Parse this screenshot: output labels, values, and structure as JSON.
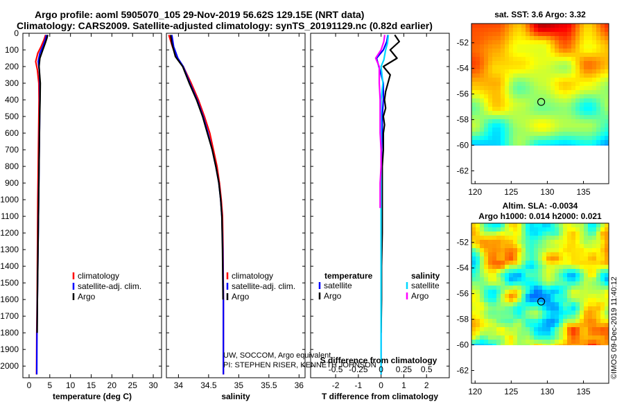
{
  "header": {
    "line1": "Argo profile: aoml 5905070_105 29-Nov-2019 56.62S 129.15E (NRT data)",
    "line2": "Climatology: CARS2009. Satellite-adjusted climatology: synTS_20191129.nc (0.82d earlier)"
  },
  "colors": {
    "argo": "#000000",
    "climatology": "#ff0000",
    "satellite": "#0000ff",
    "sal_diff": "#ff00ff",
    "sal_sat": "#00d8ff"
  },
  "chart_data": [
    {
      "id": "temperature",
      "type": "line",
      "xlabel": "temperature (deg C)",
      "xlim": [
        -1.5,
        32
      ],
      "xticks": [
        0,
        5,
        10,
        15,
        20,
        25,
        30
      ],
      "ylim": [
        2070,
        0
      ],
      "yticks": [
        0,
        100,
        200,
        300,
        400,
        500,
        600,
        700,
        800,
        900,
        1000,
        1100,
        1200,
        1300,
        1400,
        1500,
        1600,
        1700,
        1800,
        1900,
        2000
      ],
      "legend": [
        "climatology",
        "satellite-adj. clim.",
        "Argo"
      ],
      "series": [
        {
          "name": "climatology",
          "color": "#ff0000",
          "x": [
            4.0,
            3.6,
            2.9,
            2.1,
            1.6,
            2.0,
            2.35,
            2.4,
            2.35,
            2.3,
            2.25,
            2.2,
            2.15,
            2.1,
            2.05,
            2.0,
            1.95,
            1.85,
            1.8
          ],
          "y": [
            10,
            40,
            80,
            120,
            170,
            220,
            300,
            400,
            500,
            600,
            700,
            800,
            900,
            1000,
            1200,
            1400,
            1600,
            1800,
            2050
          ]
        },
        {
          "name": "satellite-adj. clim.",
          "color": "#0000ff",
          "x": [
            4.2,
            3.9,
            3.3,
            2.6,
            2.2,
            2.45,
            2.6,
            2.6,
            2.55,
            2.5,
            2.45,
            2.4,
            2.35,
            2.3,
            2.2,
            2.1,
            2.0,
            1.9,
            1.85
          ],
          "y": [
            10,
            40,
            80,
            120,
            170,
            220,
            300,
            400,
            500,
            600,
            700,
            800,
            900,
            1000,
            1200,
            1400,
            1600,
            1800,
            2050
          ]
        },
        {
          "name": "Argo",
          "color": "#000000",
          "x": [
            4.5,
            4.3,
            3.9,
            3.3,
            2.6,
            2.4,
            2.7,
            2.65,
            2.55,
            2.5,
            2.45,
            2.4,
            2.3,
            2.2,
            2.1,
            2.0,
            1.95
          ],
          "y": [
            10,
            30,
            60,
            100,
            150,
            200,
            300,
            400,
            500,
            600,
            700,
            800,
            1000,
            1200,
            1400,
            1600,
            1800
          ]
        }
      ]
    },
    {
      "id": "salinity",
      "type": "line",
      "xlabel": "salinity",
      "xlim": [
        33.8,
        36.1
      ],
      "xticks": [
        34,
        34.5,
        35,
        35.5,
        36
      ],
      "ylim": [
        2070,
        0
      ],
      "legend": [
        "climatology",
        "satellite-adj. clim.",
        "Argo"
      ],
      "annotation": [
        "UW, SOCCOM, Argo equivalent",
        "PI: STEPHEN RISER, KENNETH JOHNSON"
      ],
      "series": [
        {
          "name": "climatology",
          "color": "#ff0000",
          "x": [
            33.84,
            33.9,
            33.97,
            34.08,
            34.21,
            34.33,
            34.43,
            34.52,
            34.58,
            34.64,
            34.68,
            34.71,
            34.73,
            34.74,
            34.745,
            34.745
          ],
          "y": [
            10,
            80,
            150,
            200,
            300,
            400,
            500,
            600,
            700,
            800,
            900,
            1000,
            1100,
            1300,
            1600,
            2050
          ]
        },
        {
          "name": "satellite-adj. clim.",
          "color": "#0000ff",
          "x": [
            33.89,
            33.92,
            33.99,
            34.08,
            34.19,
            34.31,
            34.41,
            34.49,
            34.56,
            34.62,
            34.67,
            34.7,
            34.72,
            34.735,
            34.745,
            34.745
          ],
          "y": [
            10,
            80,
            150,
            200,
            300,
            400,
            500,
            600,
            700,
            800,
            900,
            1000,
            1100,
            1300,
            1600,
            2050
          ]
        },
        {
          "name": "Argo",
          "color": "#000000",
          "x": [
            33.87,
            33.89,
            33.95,
            34.07,
            34.18,
            34.3,
            34.4,
            34.48,
            34.56,
            34.62,
            34.67,
            34.7,
            34.72,
            34.73,
            34.74
          ],
          "y": [
            10,
            60,
            140,
            200,
            300,
            400,
            500,
            600,
            700,
            800,
            900,
            1000,
            1100,
            1300,
            1600
          ]
        }
      ]
    },
    {
      "id": "differences",
      "type": "line",
      "xlabel": "T difference from climatology",
      "xlabel_top": "S difference from climatology",
      "xlim": [
        -3.1,
        3.0
      ],
      "xticks": [
        -2,
        -1,
        0,
        1,
        2
      ],
      "xlim_top": [
        -0.775,
        0.75
      ],
      "xticks_top": [
        -0.5,
        -0.25,
        0,
        0.25,
        0.5
      ],
      "ylim": [
        2070,
        0
      ],
      "legend_temperature": {
        "title": "temperature",
        "items": [
          "satellite",
          "Argo"
        ]
      },
      "legend_salinity": {
        "title": "salinity",
        "items": [
          "satellite",
          "Argo"
        ]
      },
      "series": [
        {
          "name": "T satellite",
          "color": "#0000ff",
          "x": [
            0.3,
            0.25,
            0.1,
            -0.2,
            -0.1,
            0.1,
            0.1,
            0.05,
            0.05,
            0.02,
            0.02,
            0.0,
            0.0,
            0.0,
            0.0
          ],
          "y": [
            10,
            50,
            100,
            150,
            200,
            300,
            400,
            500,
            600,
            700,
            800,
            1000,
            1200,
            1500,
            2050
          ]
        },
        {
          "name": "T Argo",
          "color": "#000000",
          "x": [
            0.6,
            0.8,
            0.4,
            0.7,
            0.1,
            0.4,
            0.3,
            0.2,
            0.15,
            0.2,
            0.1,
            0.15,
            0.1,
            0.1,
            0.05,
            0.05,
            0.05,
            0.05,
            0.02,
            0.02,
            0.0
          ],
          "y": [
            10,
            50,
            100,
            150,
            200,
            250,
            300,
            350,
            400,
            450,
            500,
            550,
            600,
            700,
            800,
            900,
            1000,
            1200,
            1400,
            1600,
            1800
          ]
        },
        {
          "name": "S satellite",
          "color": "#00d8ff",
          "x": [
            0.08,
            0.07,
            0.05,
            0.03,
            0.0,
            0.02,
            0.0,
            0.0,
            0.0,
            0.0,
            0.0,
            0.0,
            0.0,
            0.0
          ],
          "y": [
            10,
            60,
            100,
            160,
            200,
            300,
            400,
            500,
            700,
            900,
            1100,
            1300,
            1600,
            2050
          ]
        },
        {
          "name": "S Argo",
          "color": "#ff00ff",
          "x": [
            0.04,
            0.03,
            0.0,
            -0.06,
            -0.02,
            -0.02,
            -0.01,
            -0.01,
            0.0,
            0.0,
            -0.01,
            -0.01
          ],
          "y": [
            10,
            50,
            100,
            150,
            200,
            300,
            400,
            600,
            700,
            800,
            900,
            1050
          ]
        }
      ]
    },
    {
      "id": "sst_map",
      "type": "heatmap",
      "title": "sat. SST: 3.6 Argo: 3.32",
      "xticks": [
        120,
        125,
        130,
        135
      ],
      "yticks": [
        -52,
        -54,
        -56,
        -58,
        -60,
        -62
      ],
      "xlim": [
        119.5,
        138.5
      ],
      "ylim": [
        -63,
        -50.5
      ],
      "data_lat_min": -60,
      "marker": {
        "lon": 129.15,
        "lat": -56.62
      }
    },
    {
      "id": "sla_map",
      "type": "heatmap",
      "title": "Altim. SLA: -0.0034",
      "subtitle": "Argo h1000: 0.014 h2000: 0.021",
      "xticks": [
        120,
        125,
        130,
        135
      ],
      "yticks": [
        -52,
        -54,
        -56,
        -58,
        -60,
        -62
      ],
      "xlim": [
        119.5,
        138.5
      ],
      "ylim": [
        -63,
        -50.5
      ],
      "data_lat_min": -60,
      "marker": {
        "lon": 129.15,
        "lat": -56.62
      }
    }
  ],
  "footer": {
    "stamp": "©IMOS 09-Dec-2019 11:40:12"
  }
}
